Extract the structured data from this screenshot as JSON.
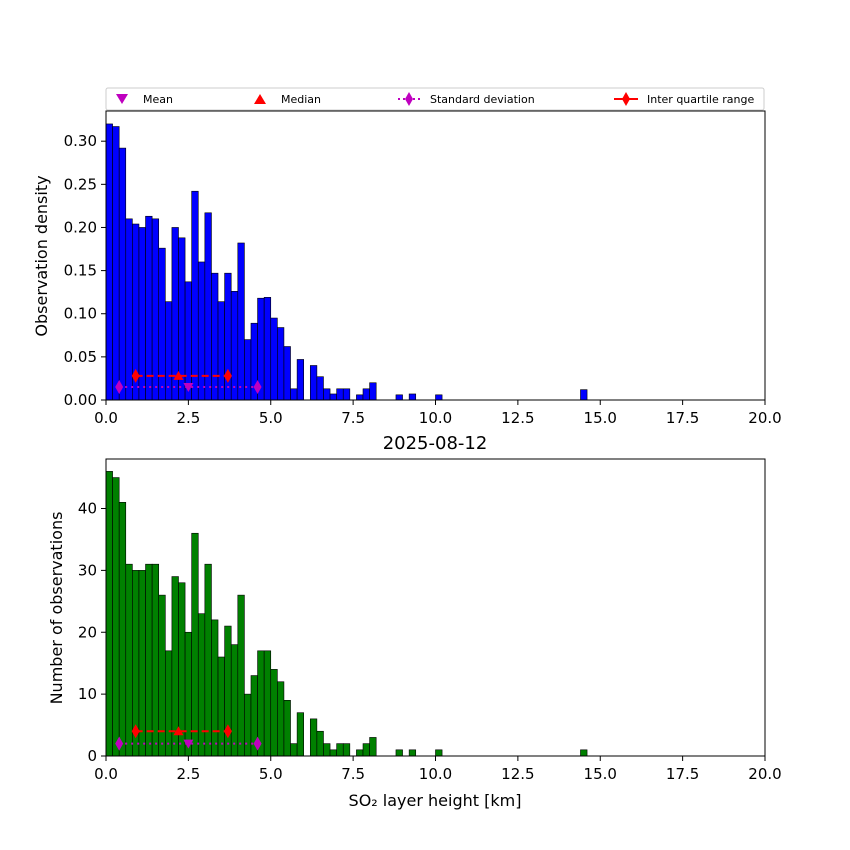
{
  "chart_data": [
    {
      "type": "bar",
      "panel": "density",
      "title": "",
      "xlabel": "",
      "ylabel": "Observation density",
      "xlim": [
        0,
        20
      ],
      "ylim": [
        0,
        0.335
      ],
      "xticks": [
        "0.0",
        "2.5",
        "5.0",
        "7.5",
        "10.0",
        "12.5",
        "15.0",
        "17.5",
        "20.0"
      ],
      "yticks": [
        "0.00",
        "0.05",
        "0.10",
        "0.15",
        "0.20",
        "0.25",
        "0.30"
      ],
      "bar_color": "#0000ff",
      "bin_width": 0.2,
      "bin_starts": [
        0.0,
        0.2,
        0.4,
        0.6,
        0.8,
        1.0,
        1.2,
        1.4,
        1.6,
        1.8,
        2.0,
        2.2,
        2.4,
        2.6,
        2.8,
        3.0,
        3.2,
        3.4,
        3.6,
        3.8,
        4.0,
        4.2,
        4.4,
        4.6,
        4.8,
        5.0,
        5.2,
        5.4,
        5.6,
        5.8,
        6.0,
        6.2,
        6.4,
        6.6,
        6.8,
        7.0,
        7.2,
        7.4,
        7.6,
        7.8,
        8.0,
        8.2,
        8.4,
        8.6,
        8.8,
        9.0,
        9.2,
        9.4,
        9.6,
        9.8,
        10.0,
        14.4
      ],
      "values": [
        0.32,
        0.317,
        0.292,
        0.21,
        0.204,
        0.2,
        0.213,
        0.21,
        0.176,
        0.114,
        0.2,
        0.188,
        0.137,
        0.242,
        0.16,
        0.217,
        0.147,
        0.114,
        0.147,
        0.126,
        0.182,
        0.07,
        0.089,
        0.118,
        0.119,
        0.095,
        0.084,
        0.062,
        0.013,
        0.047,
        0.0,
        0.04,
        0.027,
        0.013,
        0.007,
        0.013,
        0.013,
        0.0,
        0.006,
        0.013,
        0.02,
        0.0,
        0.0,
        0.0,
        0.006,
        0.0,
        0.007,
        0.0,
        0.0,
        0.0,
        0.006,
        0.012
      ],
      "stats": {
        "mean": {
          "x": 2.5,
          "y": 0.015
        },
        "median": {
          "x": 2.2,
          "y": 0.028
        },
        "std_range": [
          0.4,
          4.6
        ],
        "std_y": 0.015,
        "iqr_range": [
          0.9,
          3.7
        ],
        "iqr_y": 0.028
      }
    },
    {
      "type": "bar",
      "panel": "counts",
      "title": "2025-08-12",
      "xlabel": "SO₂ layer height [km]",
      "ylabel": "Number of observations",
      "xlim": [
        0,
        20
      ],
      "ylim": [
        0,
        48
      ],
      "xticks": [
        "0.0",
        "2.5",
        "5.0",
        "7.5",
        "10.0",
        "12.5",
        "15.0",
        "17.5",
        "20.0"
      ],
      "yticks": [
        "0",
        "10",
        "20",
        "30",
        "40"
      ],
      "bar_color": "#008000",
      "bin_width": 0.2,
      "bin_starts": [
        0.0,
        0.2,
        0.4,
        0.6,
        0.8,
        1.0,
        1.2,
        1.4,
        1.6,
        1.8,
        2.0,
        2.2,
        2.4,
        2.6,
        2.8,
        3.0,
        3.2,
        3.4,
        3.6,
        3.8,
        4.0,
        4.2,
        4.4,
        4.6,
        4.8,
        5.0,
        5.2,
        5.4,
        5.6,
        5.8,
        6.0,
        6.2,
        6.4,
        6.6,
        6.8,
        7.0,
        7.2,
        7.4,
        7.6,
        7.8,
        8.0,
        8.2,
        8.4,
        8.6,
        8.8,
        9.0,
        9.2,
        9.4,
        9.6,
        9.8,
        10.0,
        14.4
      ],
      "values": [
        46,
        45,
        41,
        31,
        30,
        30,
        31,
        31,
        26,
        17,
        29,
        28,
        20,
        36,
        23,
        31,
        22,
        16,
        21,
        18,
        26,
        10,
        13,
        17,
        17,
        14,
        12,
        9,
        2,
        7,
        0,
        6,
        4,
        2,
        1,
        2,
        2,
        0,
        1,
        2,
        3,
        0,
        0,
        0,
        1,
        0,
        1,
        0,
        0,
        0,
        1,
        1
      ],
      "stats": {
        "mean": {
          "x": 2.5,
          "y": 2
        },
        "median": {
          "x": 2.2,
          "y": 4
        },
        "std_range": [
          0.4,
          4.6
        ],
        "std_y": 2,
        "iqr_range": [
          0.9,
          3.7
        ],
        "iqr_y": 4
      }
    }
  ],
  "legend": {
    "items": [
      {
        "label": "Mean",
        "marker": "triangle-down",
        "color": "#bf00bf"
      },
      {
        "label": "Median",
        "marker": "triangle-up",
        "color": "#ff0000"
      },
      {
        "label": "Standard deviation",
        "marker": "diamond-dotted",
        "color": "#bf00bf"
      },
      {
        "label": "Inter quartile range",
        "marker": "diamond-line",
        "color": "#ff0000"
      }
    ]
  }
}
